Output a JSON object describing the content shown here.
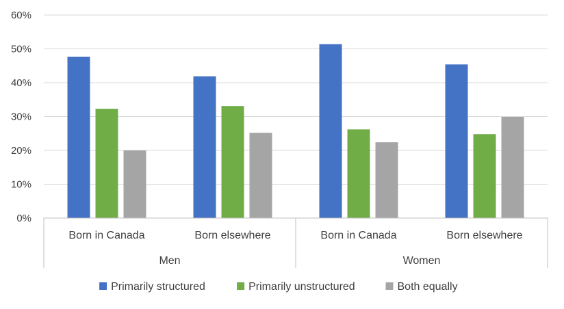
{
  "chart_data": {
    "type": "bar",
    "title": "",
    "xlabel": "",
    "ylabel": "",
    "ylim": [
      0,
      60
    ],
    "y_ticks": [
      "0%",
      "10%",
      "20%",
      "30%",
      "40%",
      "50%",
      "60%"
    ],
    "grid": true,
    "legend_position": "bottom",
    "groups": [
      {
        "label": "Men",
        "categories": [
          "Born in Canada",
          "Born elsewhere"
        ]
      },
      {
        "label": "Women",
        "categories": [
          "Born in Canada",
          "Born elsewhere"
        ]
      }
    ],
    "series": [
      {
        "name": "Primarily structured",
        "color": "#4472C4",
        "values": [
          47.7,
          41.9,
          51.4,
          45.4
        ]
      },
      {
        "name": "Primarily unstructured",
        "color": "#70AD47",
        "values": [
          32.3,
          33.1,
          26.2,
          24.8
        ]
      },
      {
        "name": "Both equally",
        "color": "#A5A5A5",
        "values": [
          20.0,
          25.2,
          22.4,
          29.9
        ]
      }
    ]
  }
}
